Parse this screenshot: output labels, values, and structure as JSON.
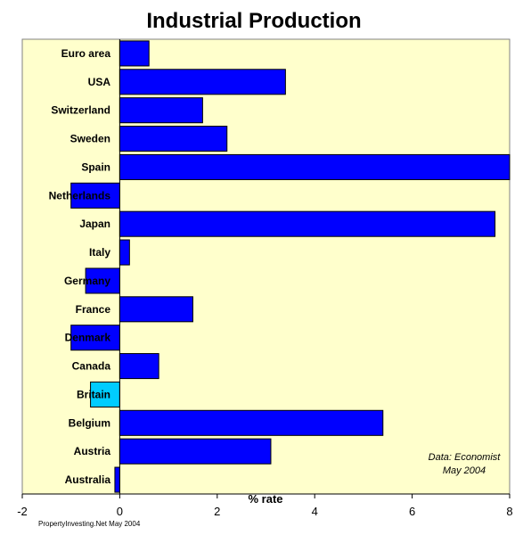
{
  "chart_data": {
    "type": "bar",
    "orientation": "horizontal",
    "title": "Industrial Production",
    "xlabel": "% rate",
    "ylabel": "",
    "xlim": [
      -2,
      8
    ],
    "x_ticks": [
      -2,
      0,
      2,
      4,
      6,
      8
    ],
    "grid": false,
    "categories": [
      "Euro area",
      "USA",
      "Switzerland",
      "Sweden",
      "Spain",
      "Netherlands",
      "Japan",
      "Italy",
      "Germany",
      "France",
      "Denmark",
      "Canada",
      "Britain",
      "Belgium",
      "Austria",
      "Australia"
    ],
    "values": [
      0.6,
      3.4,
      1.7,
      2.2,
      8.2,
      -1.0,
      7.7,
      0.2,
      -0.7,
      1.5,
      -1.0,
      0.8,
      -0.6,
      5.4,
      3.1,
      -0.1
    ],
    "highlight_category": "Britain",
    "annotations": [
      "Data: Economist",
      "May 2004"
    ],
    "credit": "PropertyInvesting.Net May 2004"
  },
  "colors": {
    "plot_background": "#ffffcc",
    "bar": "#0000ff",
    "highlight_bar": "#00ccff",
    "bar_stroke": "#000000"
  }
}
